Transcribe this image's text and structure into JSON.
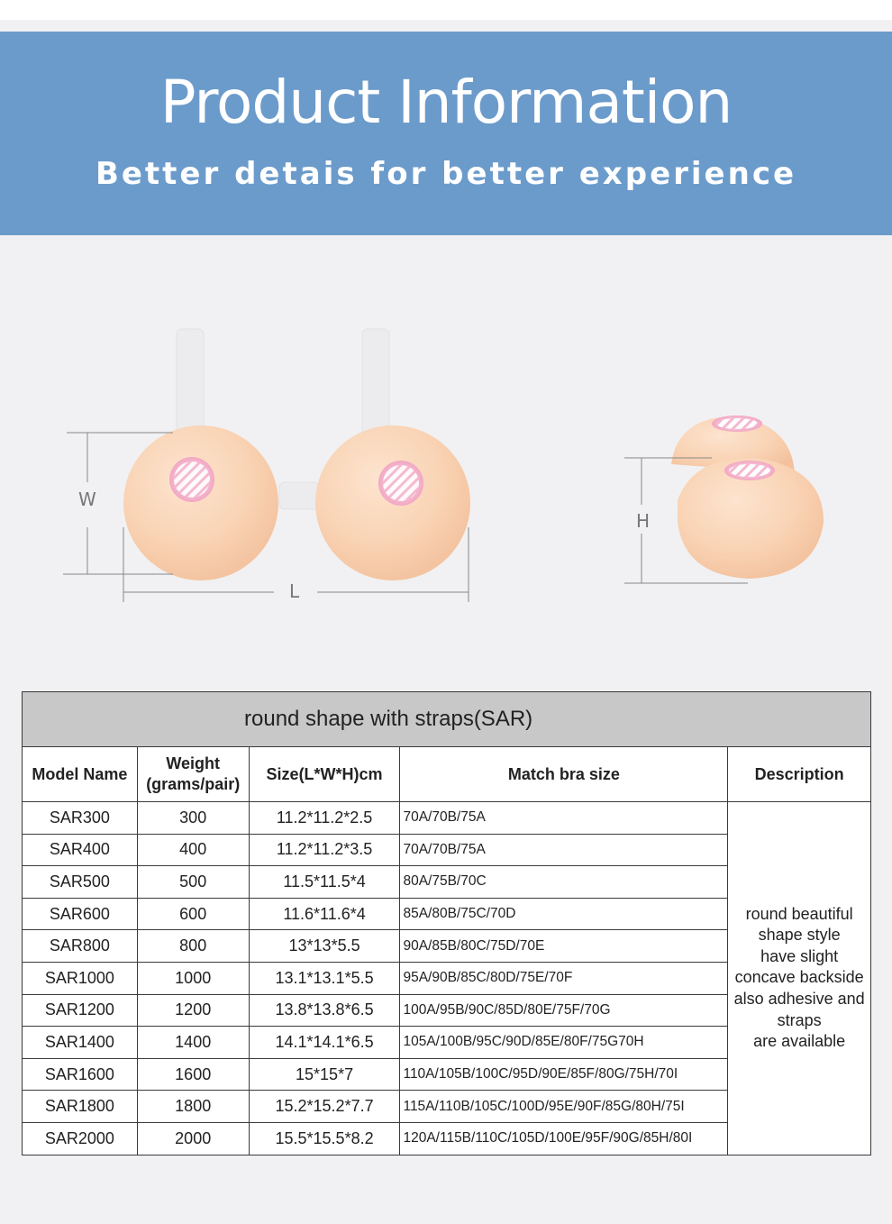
{
  "banner": {
    "title": "Product Information",
    "subtitle": "Better detais for better experience",
    "color": "#6b9bcb"
  },
  "illustration": {
    "labels": {
      "width": "W",
      "length": "L",
      "height": "H"
    },
    "skin_color": "#f9d3b4"
  },
  "table": {
    "caption": "round shape with straps(SAR)",
    "headers": {
      "model": "Model Name",
      "weight_line1": "Weight",
      "weight_line2": "(grams/pair)",
      "size": "Size(L*W*H)cm",
      "bra": "Match bra size",
      "description": "Description"
    },
    "rows": [
      {
        "model": "SAR300",
        "weight": "300",
        "size": "11.2*11.2*2.5",
        "bra": "70A/70B/75A"
      },
      {
        "model": "SAR400",
        "weight": "400",
        "size": "11.2*11.2*3.5",
        "bra": "70A/70B/75A"
      },
      {
        "model": "SAR500",
        "weight": "500",
        "size": "11.5*11.5*4",
        "bra": "80A/75B/70C"
      },
      {
        "model": "SAR600",
        "weight": "600",
        "size": "11.6*11.6*4",
        "bra": "85A/80B/75C/70D"
      },
      {
        "model": "SAR800",
        "weight": "800",
        "size": "13*13*5.5",
        "bra": "90A/85B/80C/75D/70E"
      },
      {
        "model": "SAR1000",
        "weight": "1000",
        "size": "13.1*13.1*5.5",
        "bra": "95A/90B/85C/80D/75E/70F"
      },
      {
        "model": "SAR1200",
        "weight": "1200",
        "size": "13.8*13.8*6.5",
        "bra": "100A/95B/90C/85D/80E/75F/70G"
      },
      {
        "model": "SAR1400",
        "weight": "1400",
        "size": "14.1*14.1*6.5",
        "bra": "105A/100B/95C/90D/85E/80F/75G70H"
      },
      {
        "model": "SAR1600",
        "weight": "1600",
        "size": "15*15*7",
        "bra": "110A/105B/100C/95D/90E/85F/80G/75H/70I"
      },
      {
        "model": "SAR1800",
        "weight": "1800",
        "size": "15.2*15.2*7.7",
        "bra": "115A/110B/105C/100D/95E/90F/85G/80H/75I"
      },
      {
        "model": "SAR2000",
        "weight": "2000",
        "size": "15.5*15.5*8.2",
        "bra": "120A/115B/110C/105D/100E/95F/90G/85H/80I"
      }
    ],
    "description_lines": [
      "round beautiful",
      "shape style",
      "have slight",
      "concave backside",
      "also adhesive and",
      "straps",
      "are available"
    ]
  }
}
